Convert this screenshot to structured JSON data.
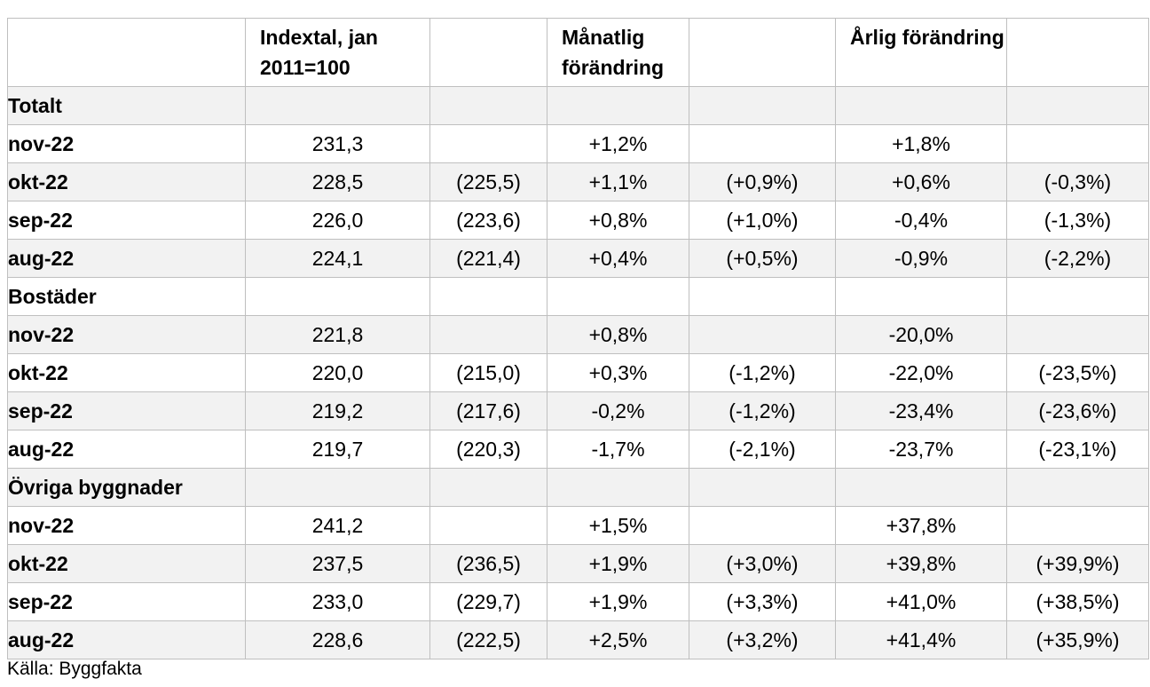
{
  "table": {
    "headers": [
      "",
      "Indextal, jan 2011=100",
      "",
      "Månatlig förändring",
      "",
      "Årlig förändring",
      ""
    ],
    "sections": [
      {
        "label": "Totalt",
        "rows": [
          {
            "period": "nov-22",
            "index": "231,3",
            "index_prev": "",
            "monthly": "+1,2%",
            "monthly_prev": "",
            "yearly": "+1,8%",
            "yearly_prev": ""
          },
          {
            "period": "okt-22",
            "index": "228,5",
            "index_prev": "(225,5)",
            "monthly": "+1,1%",
            "monthly_prev": "(+0,9%)",
            "yearly": "+0,6%",
            "yearly_prev": "(-0,3%)"
          },
          {
            "period": "sep-22",
            "index": "226,0",
            "index_prev": "(223,6)",
            "monthly": "+0,8%",
            "monthly_prev": "(+1,0%)",
            "yearly": "-0,4%",
            "yearly_prev": "(-1,3%)"
          },
          {
            "period": "aug-22",
            "index": "224,1",
            "index_prev": "(221,4)",
            "monthly": "+0,4%",
            "monthly_prev": "(+0,5%)",
            "yearly": "-0,9%",
            "yearly_prev": "(-2,2%)"
          }
        ]
      },
      {
        "label": "Bostäder",
        "rows": [
          {
            "period": "nov-22",
            "index": "221,8",
            "index_prev": "",
            "monthly": "+0,8%",
            "monthly_prev": "",
            "yearly": "-20,0%",
            "yearly_prev": ""
          },
          {
            "period": "okt-22",
            "index": "220,0",
            "index_prev": "(215,0)",
            "monthly": "+0,3%",
            "monthly_prev": "(-1,2%)",
            "yearly": "-22,0%",
            "yearly_prev": "(-23,5%)"
          },
          {
            "period": "sep-22",
            "index": "219,2",
            "index_prev": "(217,6)",
            "monthly": "-0,2%",
            "monthly_prev": "(-1,2%)",
            "yearly": "-23,4%",
            "yearly_prev": "(-23,6%)"
          },
          {
            "period": "aug-22",
            "index": "219,7",
            "index_prev": "(220,3)",
            "monthly": "-1,7%",
            "monthly_prev": "(-2,1%)",
            "yearly": "-23,7%",
            "yearly_prev": "(-23,1%)"
          }
        ]
      },
      {
        "label": "Övriga byggnader",
        "rows": [
          {
            "period": "nov-22",
            "index": "241,2",
            "index_prev": "",
            "monthly": "+1,5%",
            "monthly_prev": "",
            "yearly": "+37,8%",
            "yearly_prev": ""
          },
          {
            "period": "okt-22",
            "index": "237,5",
            "index_prev": "(236,5)",
            "monthly": "+1,9%",
            "monthly_prev": "(+3,0%)",
            "yearly": "+39,8%",
            "yearly_prev": "(+39,9%)"
          },
          {
            "period": "sep-22",
            "index": "233,0",
            "index_prev": "(229,7)",
            "monthly": "+1,9%",
            "monthly_prev": "(+3,3%)",
            "yearly": "+41,0%",
            "yearly_prev": "(+38,5%)"
          },
          {
            "period": "aug-22",
            "index": "228,6",
            "index_prev": "(222,5)",
            "monthly": "+2,5%",
            "monthly_prev": "(+3,2%)",
            "yearly": "+41,4%",
            "yearly_prev": "(+35,9%)"
          }
        ]
      }
    ]
  },
  "source": "Källa: Byggfakta",
  "colors": {
    "border": "#bfbfbf",
    "shade": "#f2f2f2",
    "text": "#000000"
  }
}
